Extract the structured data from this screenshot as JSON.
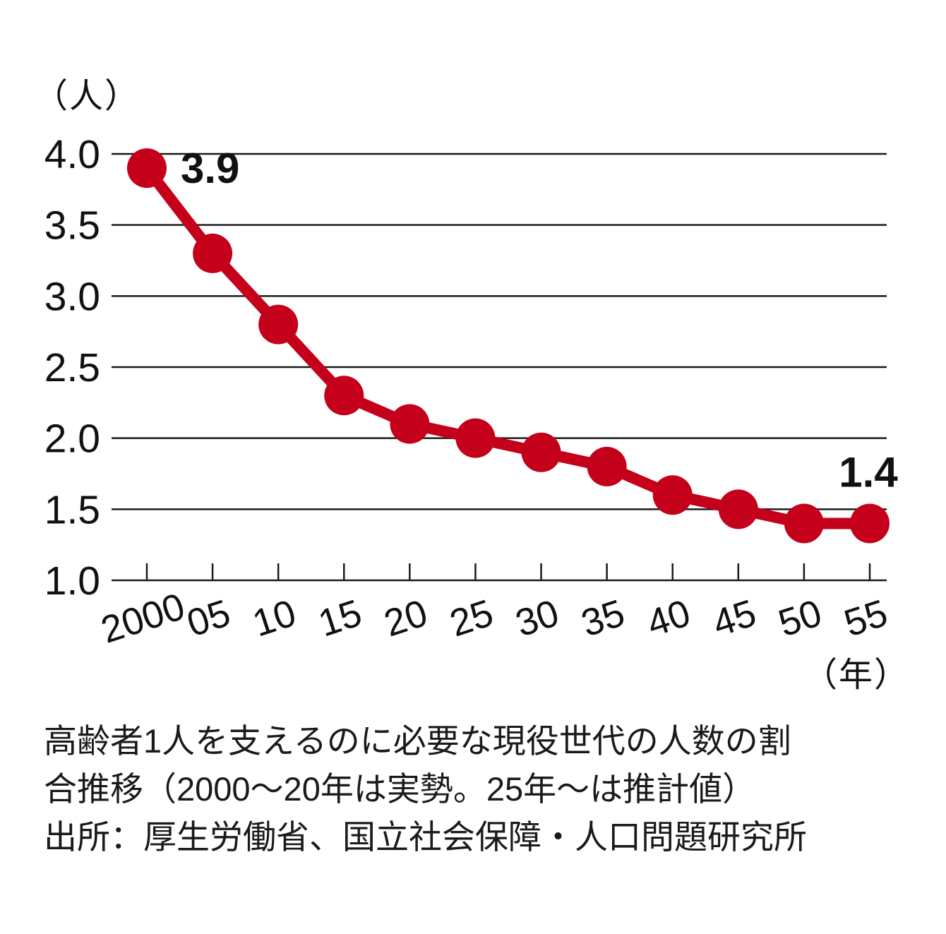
{
  "chart_data": {
    "type": "line",
    "title": "",
    "y_unit": "（人）",
    "x_unit": "（年）",
    "categories": [
      "2000",
      "05",
      "10",
      "15",
      "20",
      "25",
      "30",
      "35",
      "40",
      "45",
      "50",
      "55"
    ],
    "values": [
      3.9,
      3.3,
      2.8,
      2.3,
      2.1,
      2.0,
      1.9,
      1.8,
      1.6,
      1.5,
      1.4,
      1.4
    ],
    "ylim": [
      1.0,
      4.0
    ],
    "ytick_step": 0.5,
    "ytick_labels": [
      "1.0",
      "1.5",
      "2.0",
      "2.5",
      "3.0",
      "3.5",
      "4.0"
    ],
    "first_point_label": "3.9",
    "last_point_label": "1.4",
    "line_color": "#c5001a",
    "grid_color": "#1a1a1a",
    "grid": "on",
    "legend": "none"
  },
  "caption": {
    "line1": "高齢者1人を支えるのに必要な現役世代の人数の割",
    "line2": "合推移（2000〜20年は実勢。25年〜は推計値）",
    "line3": "出所：厚生労働省、国立社会保障・人口問題研究所"
  }
}
